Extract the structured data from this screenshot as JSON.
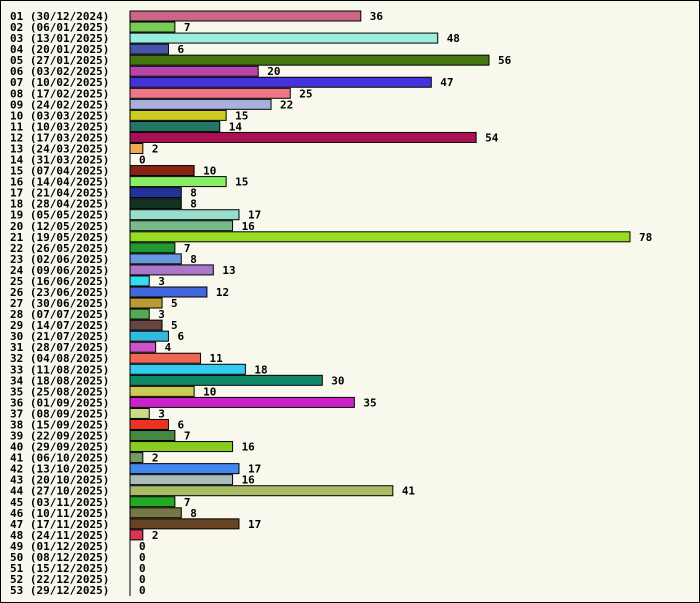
{
  "chart_data": {
    "type": "bar",
    "orientation": "horizontal",
    "title": "",
    "xlabel": "",
    "ylabel": "",
    "grid": false,
    "categories": [
      "01 (30/12/2024)",
      "02 (06/01/2025)",
      "03 (13/01/2025)",
      "04 (20/01/2025)",
      "05 (27/01/2025)",
      "06 (03/02/2025)",
      "07 (10/02/2025)",
      "08 (17/02/2025)",
      "09 (24/02/2025)",
      "10 (03/03/2025)",
      "11 (10/03/2025)",
      "12 (17/03/2025)",
      "13 (24/03/2025)",
      "14 (31/03/2025)",
      "15 (07/04/2025)",
      "16 (14/04/2025)",
      "17 (21/04/2025)",
      "18 (28/04/2025)",
      "19 (05/05/2025)",
      "20 (12/05/2025)",
      "21 (19/05/2025)",
      "22 (26/05/2025)",
      "23 (02/06/2025)",
      "24 (09/06/2025)",
      "25 (16/06/2025)",
      "26 (23/06/2025)",
      "27 (30/06/2025)",
      "28 (07/07/2025)",
      "29 (14/07/2025)",
      "30 (21/07/2025)",
      "31 (28/07/2025)",
      "32 (04/08/2025)",
      "33 (11/08/2025)",
      "34 (18/08/2025)",
      "35 (25/08/2025)",
      "36 (01/09/2025)",
      "37 (08/09/2025)",
      "38 (15/09/2025)",
      "39 (22/09/2025)",
      "40 (29/09/2025)",
      "41 (06/10/2025)",
      "42 (13/10/2025)",
      "43 (20/10/2025)",
      "44 (27/10/2025)",
      "45 (03/11/2025)",
      "46 (10/11/2025)",
      "47 (17/11/2025)",
      "48 (24/11/2025)",
      "49 (01/12/2025)",
      "50 (08/12/2025)",
      "51 (15/12/2025)",
      "52 (22/12/2025)",
      "53 (29/12/2025)"
    ],
    "values": [
      36,
      7,
      48,
      6,
      56,
      20,
      47,
      25,
      22,
      15,
      14,
      54,
      2,
      0,
      10,
      15,
      8,
      8,
      17,
      16,
      78,
      7,
      8,
      13,
      3,
      12,
      5,
      3,
      5,
      6,
      4,
      11,
      18,
      30,
      10,
      35,
      3,
      6,
      7,
      16,
      2,
      17,
      16,
      41,
      7,
      8,
      17,
      2,
      0,
      0,
      0,
      0,
      0
    ],
    "colors": [
      "#cc6688",
      "#77cc55",
      "#99eedd",
      "#4455aa",
      "#447711",
      "#bb44aa",
      "#4433dd",
      "#ee7788",
      "#aab0dd",
      "#cccc22",
      "#227766",
      "#aa1155",
      "#eeaa55",
      "#ffffff",
      "#882211",
      "#88ee66",
      "#223399",
      "#113322",
      "#99ddcc",
      "#77bb88",
      "#99dd22",
      "#229933",
      "#6699dd",
      "#aa77cc",
      "#33ddee",
      "#4466dd",
      "#bb9933",
      "#55aa55",
      "#664444",
      "#33bbdd",
      "#cc55cc",
      "#ee6655",
      "#33ccee",
      "#118866",
      "#cccc55",
      "#cc22cc",
      "#ccdd88",
      "#ee3322",
      "#448844",
      "#88cc22",
      "#779966",
      "#4488ee",
      "#aabbbb",
      "#aabb66",
      "#22aa22",
      "#777744",
      "#664422",
      "#dd3355",
      "#ffffff",
      "#ffffff",
      "#ffffff",
      "#ffffff",
      "#ffffff"
    ],
    "xlim": [
      0,
      78
    ],
    "value_labels": true
  }
}
